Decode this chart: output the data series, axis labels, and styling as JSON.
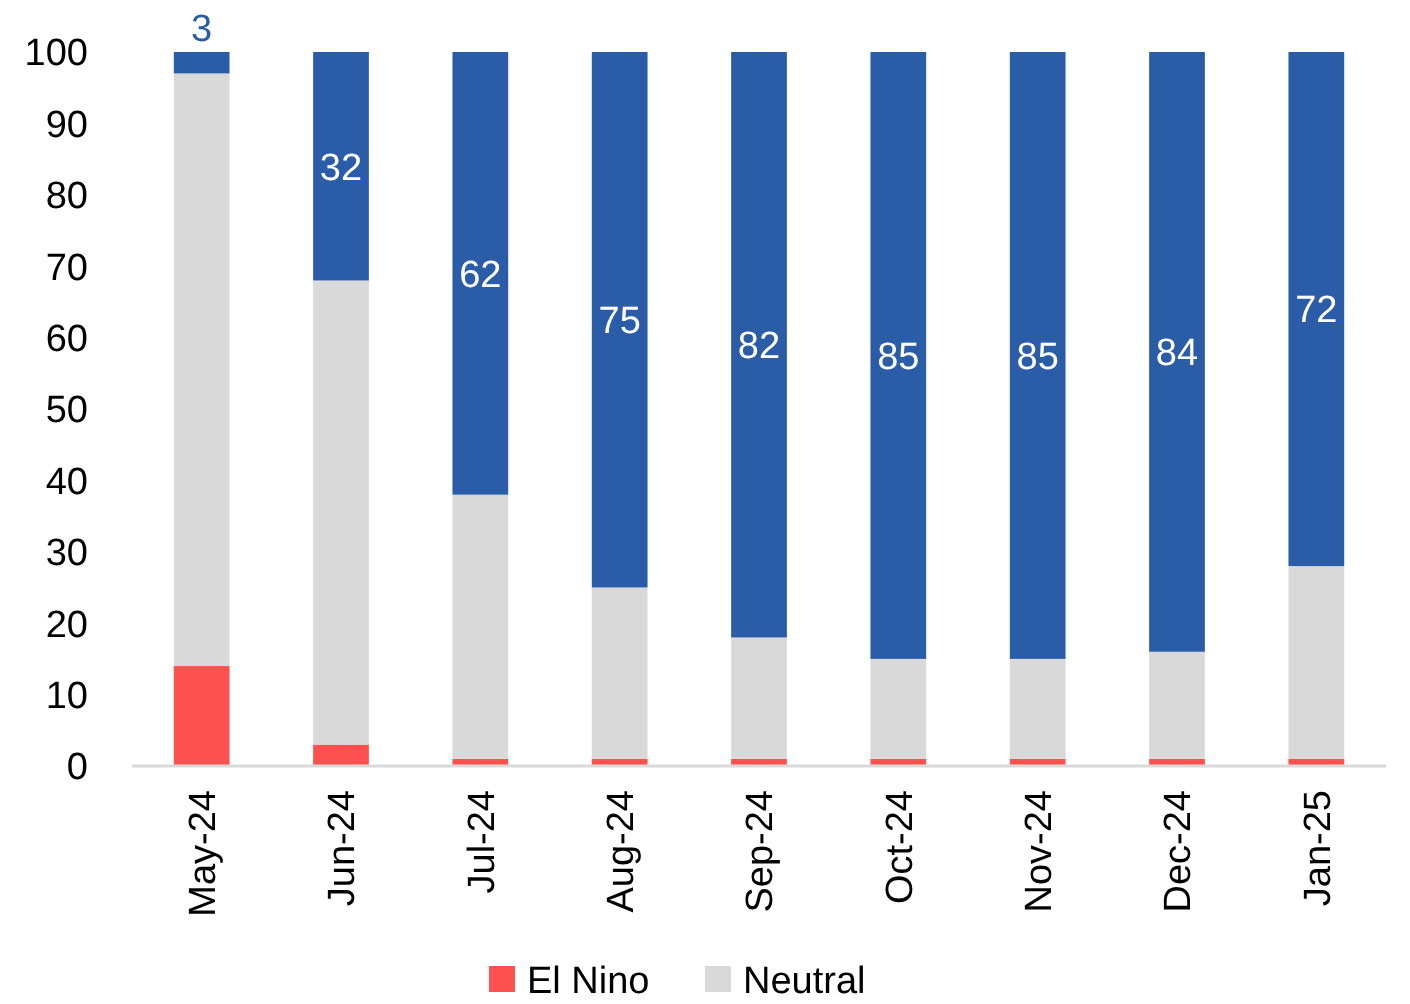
{
  "chart_data": {
    "type": "bar",
    "stacked": true,
    "categories": [
      "May-24",
      "Jun-24",
      "Jul-24",
      "Aug-24",
      "Sep-24",
      "Oct-24",
      "Nov-24",
      "Dec-24",
      "Jan-25"
    ],
    "series": [
      {
        "name": "El Nino",
        "color": "#ff5050",
        "values": [
          14,
          3,
          1,
          1,
          1,
          1,
          1,
          1,
          1
        ]
      },
      {
        "name": "Neutral",
        "color": "#d9d9d9",
        "values": [
          83,
          65,
          37,
          24,
          17,
          14,
          14,
          15,
          27
        ]
      },
      {
        "color": "#2b5ca8",
        "values": [
          3,
          32,
          62,
          75,
          82,
          85,
          85,
          84,
          72
        ],
        "value_labels": [
          "3",
          "32",
          "62",
          "75",
          "82",
          "85",
          "85",
          "84",
          "72"
        ]
      }
    ],
    "ylim": [
      0,
      100
    ],
    "yticks": [
      0,
      10,
      20,
      30,
      40,
      50,
      60,
      70,
      80,
      90,
      100
    ],
    "grid": false,
    "legend": "bottom"
  }
}
